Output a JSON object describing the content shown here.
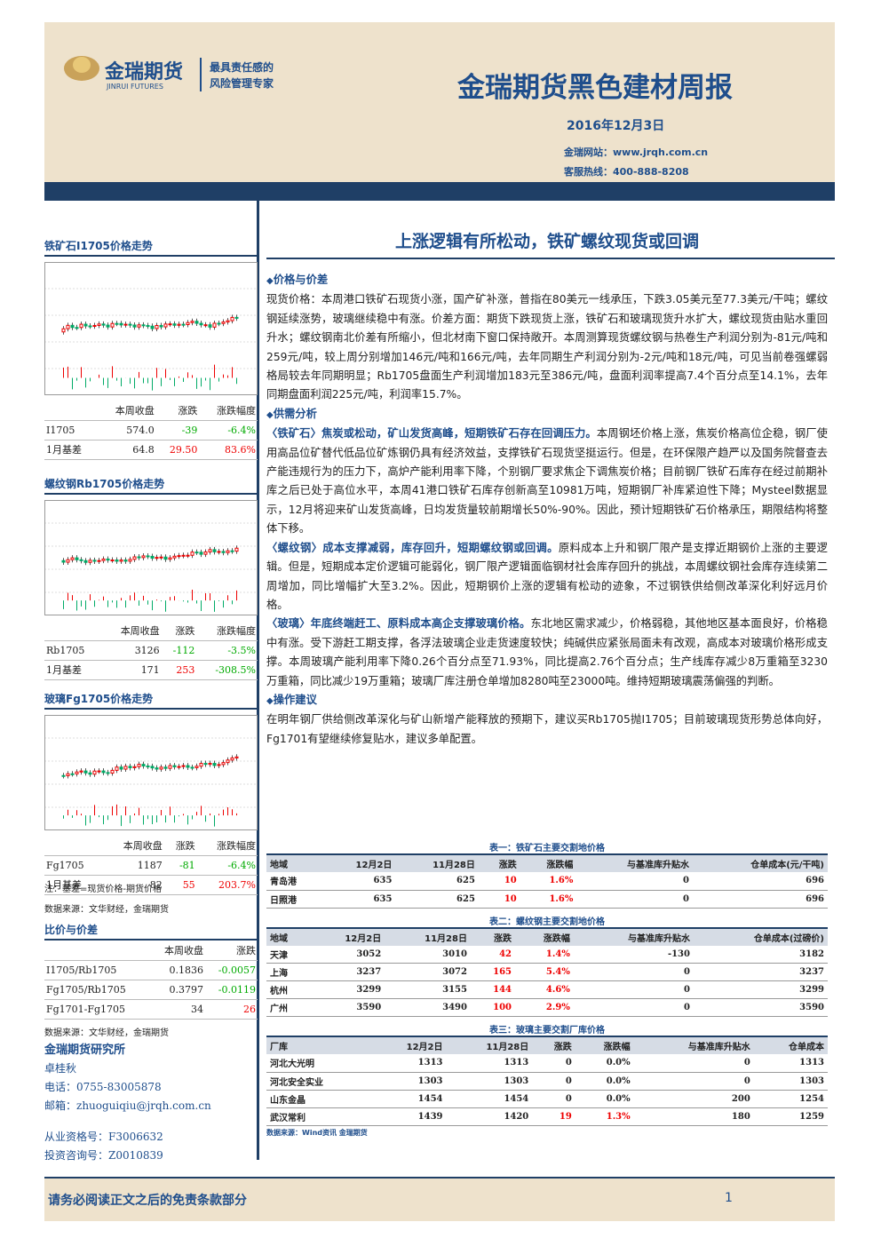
{
  "header": {
    "logo_name": "金瑞期货",
    "logo_sub": "JINRUI FUTURES",
    "slogan": [
      "最具责任感的",
      "风险管理专家"
    ],
    "title": "金瑞期货黑色建材周报",
    "date": "2016年12月3日",
    "website": "金瑞网站：www.jrqh.com.cn",
    "hotline": "客服热线：400-888-8208"
  },
  "sidebar": {
    "panels": [
      {
        "title": "铁矿石I1705价格走势",
        "columns": [
          "本周收盘",
          "涨跌",
          "涨跌幅度"
        ],
        "rows": [
          [
            "I1705",
            "574.0",
            "-39",
            "-6.4%"
          ],
          [
            "1月基差",
            "64.8",
            "29.50",
            "83.6%"
          ]
        ]
      },
      {
        "title": "螺纹钢Rb1705价格走势",
        "columns": [
          "本周收盘",
          "涨跌",
          "涨跌幅度"
        ],
        "rows": [
          [
            "Rb1705",
            "3126",
            "-112",
            "-3.5%"
          ],
          [
            "1月基差",
            "171",
            "253",
            "-308.5%"
          ]
        ]
      },
      {
        "title": "玻璃Fg1705价格走势",
        "columns": [
          "本周收盘",
          "涨跌",
          "涨跌幅度"
        ],
        "rows": [
          [
            "Fg1705",
            "1187",
            "-81",
            "-6.4%"
          ],
          [
            "1月基差",
            "82",
            "55",
            "203.7%"
          ]
        ]
      }
    ],
    "notes": [
      "注：基差=现货价格-期货价格",
      "数据来源：文华财经，金瑞期货"
    ],
    "ratio": {
      "title": "比价与价差",
      "columns": [
        "本周收盘",
        "涨跌"
      ],
      "rows": [
        [
          "I1705/Rb1705",
          "0.1836",
          "-0.0057"
        ],
        [
          "Fg1705/Rb1705",
          "0.3797",
          "-0.0119"
        ],
        [
          "Fg1701-Fg1705",
          "34",
          "26"
        ]
      ],
      "source": "数据来源：文华财经，金瑞期货"
    },
    "contact": {
      "org": "金瑞期货研究所",
      "name": "卓桂秋",
      "phone": "电话：0755-83005878",
      "email": "邮箱：zhuoguiqiu@jrqh.com.cn",
      "license": "从业资格号：F3006632",
      "advisory": "投资咨询号：Z0010839"
    }
  },
  "main": {
    "headline": "上涨逻辑有所松动，铁矿螺纹现货或回调",
    "sections": [
      {
        "heading": "价格与价差",
        "paragraphs": [
          {
            "text": "现货价格：本周港口铁矿石现货小涨，国产矿补涨，普指在80美元一线承压，下跌3.05美元至77.3美元/干吨；螺纹钢延续涨势，玻璃继续稳中有涨。价差方面：期货下跌现货上涨，铁矿石和玻璃现货升水扩大，螺纹现货由贴水重回升水；螺纹钢南北价差有所缩小，但北材南下窗口保持敞开。本周测算现货螺纹钢与热卷生产利润分别为-81元/吨和259元/吨，较上周分别增加146元/吨和166元/吨，去年同期生产利润分别为-2元/吨和18元/吨，可见当前卷强螺弱格局较去年同期明显；Rb1705盘面生产利润增加183元至386元/吨，盘面利润率提高7.4个百分点至14.1%，去年同期盘面利润225元/吨，利润率15.7%。"
          }
        ]
      },
      {
        "heading": "供需分析",
        "paragraphs": [
          {
            "lead": "〈铁矿石〉焦炭或松动，矿山发货高峰，短期铁矿石存在回调压力。",
            "text": "本周钢坯价格上涨，焦炭价格高位企稳，钢厂使用高品位矿替代低品位矿炼钢仍具有经济效益，支撑铁矿石现货坚挺运行。但是，在环保限产趋严以及国务院督查去产能违规行为的压力下，高炉产能利用率下降，个别钢厂要求焦企下调焦炭价格；目前钢厂铁矿石库存在经过前期补库之后已处于高位水平，本周41港口铁矿石库存创新高至10981万吨，短期钢厂补库紧迫性下降；Mysteel数据显示，12月将迎来矿山发货高峰，日均发货量较前期增长50%-90%。因此，预计短期铁矿石价格承压，期限结构将整体下移。"
          },
          {
            "lead": "〈螺纹钢〉成本支撑减弱，库存回升，短期螺纹钢或回调。",
            "text": "原料成本上升和钢厂限产是支撑近期钢价上涨的主要逻辑。但是，短期成本定价逻辑可能弱化，钢厂限产逻辑面临钢材社会库存回升的挑战，本周螺纹钢社会库存连续第二周增加，同比增幅扩大至3.2%。因此，短期钢价上涨的逻辑有松动的迹象，不过钢铁供给侧改革深化利好远月价格。"
          },
          {
            "lead": "〈玻璃〉年底终端赶工、原料成本高企支撑玻璃价格。",
            "text": "东北地区需求减少，价格弱稳，其他地区基本面良好，价格稳中有涨。受下游赶工期支撑，各浮法玻璃企业走货速度较快；纯碱供应紧张局面未有改观，高成本对玻璃价格形成支撑。本周玻璃产能利用率下降0.26个百分点至71.93%，同比提高2.76个百分点；生产线库存减少8万重箱至3230万重箱，同比减少19万重箱；玻璃厂库注册仓单增加8280吨至23000吨。维持短期玻璃震荡偏强的判断。"
          }
        ]
      },
      {
        "heading": "操作建议",
        "paragraphs": [
          {
            "text": "在明年钢厂供给侧改革深化与矿山新增产能释放的预期下，建议买Rb1705抛I1705；目前玻璃现货形势总体向好，Fg1701有望继续修复贴水，建议多单配置。"
          }
        ]
      }
    ],
    "tables": [
      {
        "caption": "表一：铁矿石主要交割地价格",
        "columns": [
          "地域",
          "12月2日",
          "11月28日",
          "涨跌",
          "涨跌幅",
          "与基准库升贴水",
          "仓单成本(元/干吨)"
        ],
        "rows": [
          [
            "青岛港",
            "635",
            "625",
            "10",
            "1.6%",
            "0",
            "696"
          ],
          [
            "日照港",
            "635",
            "625",
            "10",
            "1.6%",
            "0",
            "696"
          ]
        ]
      },
      {
        "caption": "表二：螺纹钢主要交割地价格",
        "columns": [
          "地域",
          "12月2日",
          "11月28日",
          "涨跌",
          "涨跌幅",
          "与基准库升贴水",
          "仓单成本(过磅价)"
        ],
        "rows": [
          [
            "天津",
            "3052",
            "3010",
            "42",
            "1.4%",
            "-130",
            "3182"
          ],
          [
            "上海",
            "3237",
            "3072",
            "165",
            "5.4%",
            "0",
            "3237"
          ],
          [
            "杭州",
            "3299",
            "3155",
            "144",
            "4.6%",
            "0",
            "3299"
          ],
          [
            "广州",
            "3590",
            "3490",
            "100",
            "2.9%",
            "0",
            "3590"
          ]
        ]
      },
      {
        "caption": "表三：玻璃主要交割厂库价格",
        "columns": [
          "厂库",
          "12月2日",
          "11月28日",
          "涨跌",
          "涨跌幅",
          "与基准库升贴水",
          "仓单成本"
        ],
        "rows": [
          [
            "河北大光明",
            "1313",
            "1313",
            "0",
            "0.0%",
            "0",
            "1313"
          ],
          [
            "河北安全实业",
            "1303",
            "1303",
            "0",
            "0.0%",
            "0",
            "1303"
          ],
          [
            "山东金晶",
            "1454",
            "1454",
            "0",
            "0.0%",
            "200",
            "1254"
          ],
          [
            "武汉常利",
            "1439",
            "1420",
            "19",
            "1.3%",
            "180",
            "1259"
          ]
        ]
      }
    ],
    "tables_source": "数据来源：Wind资讯  金瑞期货"
  },
  "footer": {
    "disclaimer": "请务必阅读正文之后的免责条款部分",
    "page": "1"
  }
}
